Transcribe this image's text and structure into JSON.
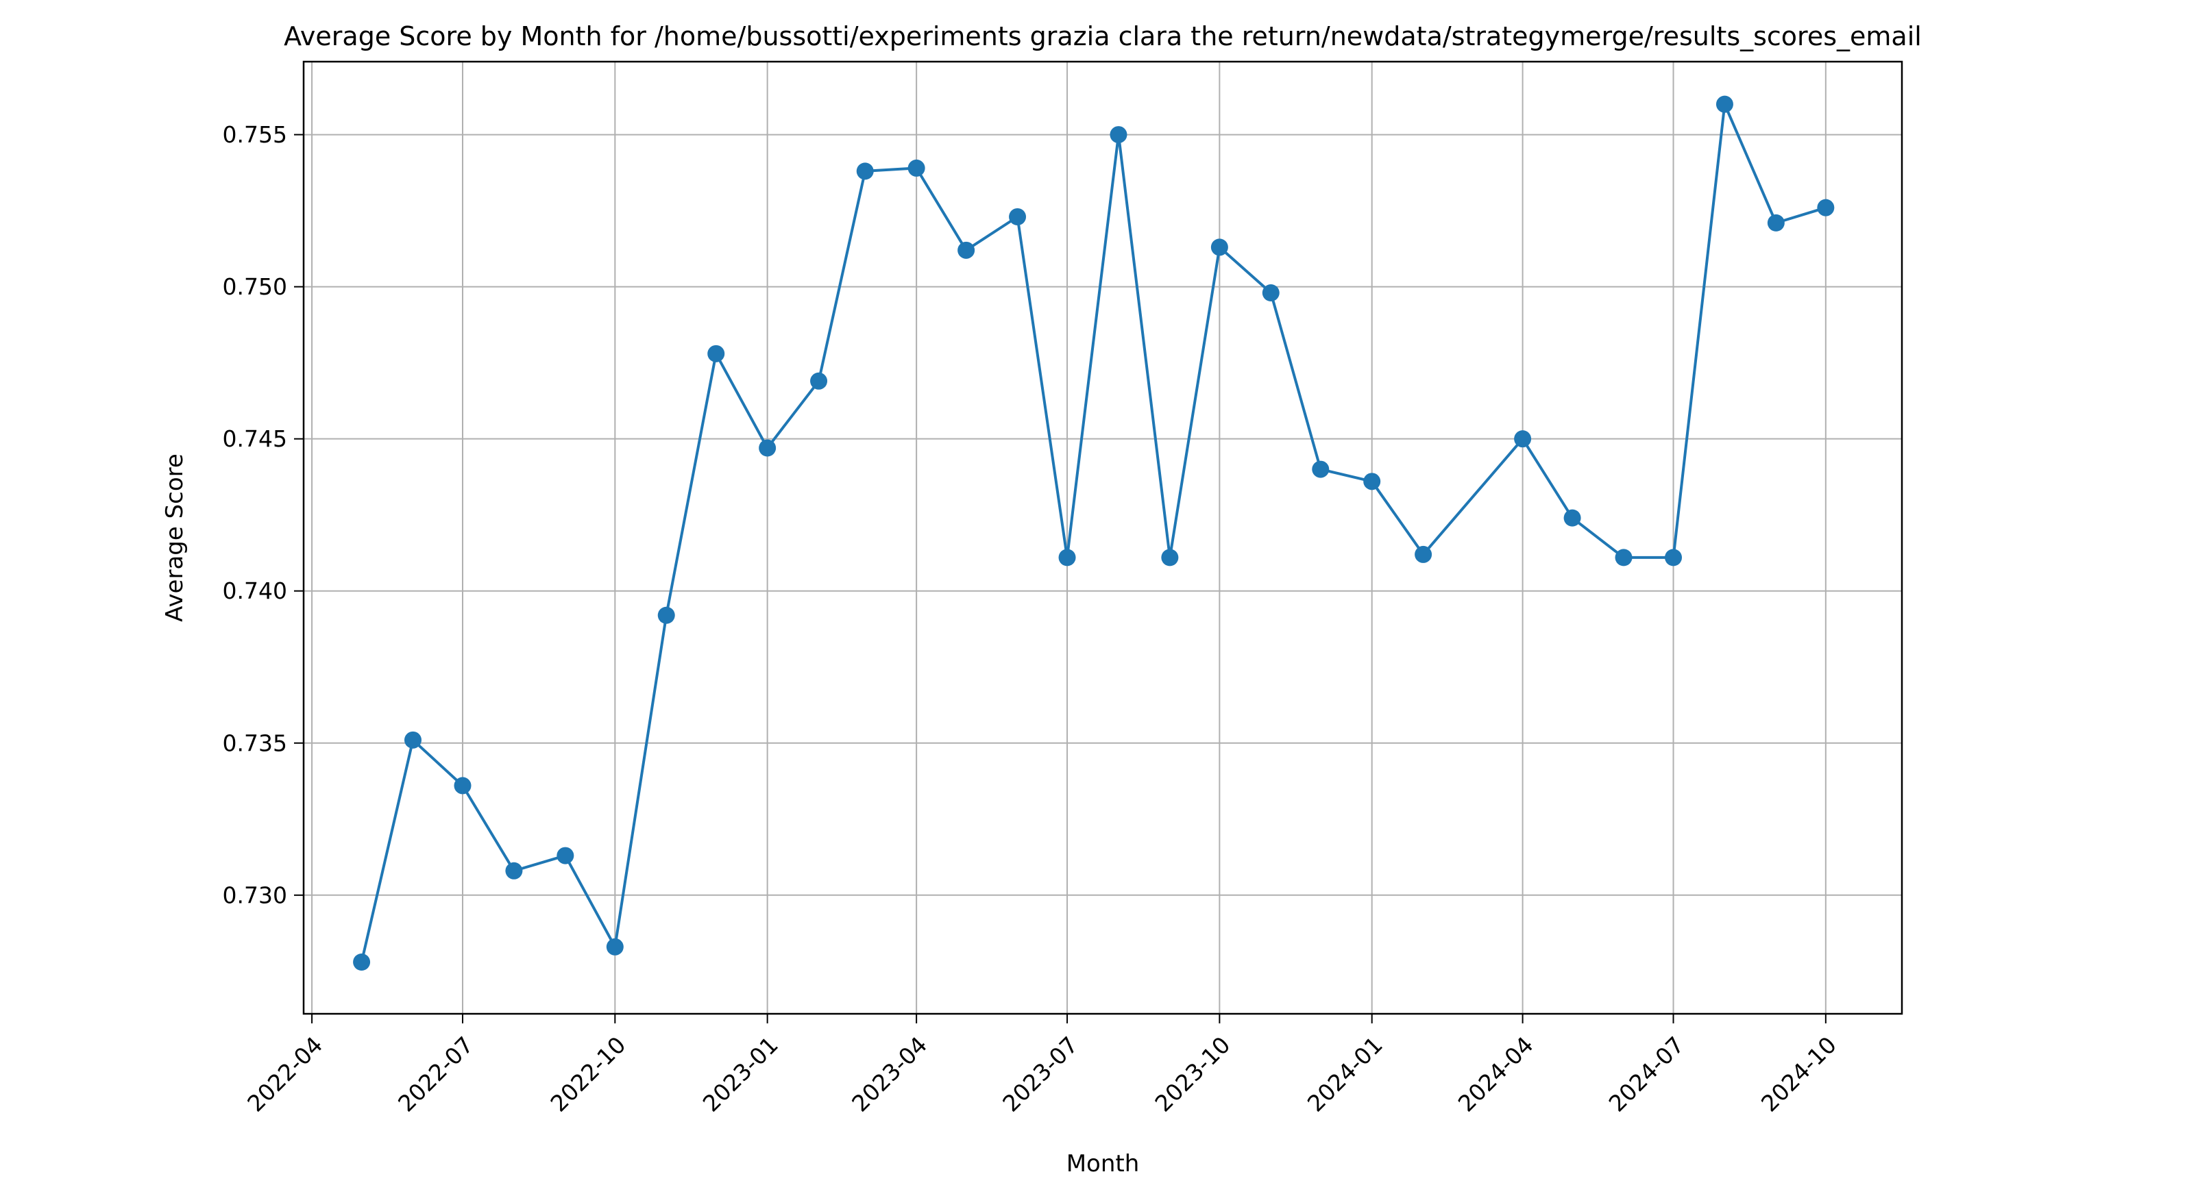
{
  "chart_data": {
    "type": "line",
    "title": "Average Score by Month for /home/bussotti/experiments grazia clara the return/newdata/strategymerge/results_scores_email",
    "xlabel": "Month",
    "ylabel": "Average Score",
    "xlim": [
      "2022-03-27",
      "2024-11-16"
    ],
    "ylim": [
      0.7261,
      0.7574
    ],
    "grid": true,
    "x_ticks": [
      "2022-04",
      "2022-07",
      "2022-10",
      "2023-01",
      "2023-04",
      "2023-07",
      "2023-10",
      "2024-01",
      "2024-04",
      "2024-07",
      "2024-10"
    ],
    "y_ticks": [
      "0.730",
      "0.735",
      "0.740",
      "0.745",
      "0.750",
      "0.755"
    ],
    "x": [
      "2022-05-01",
      "2022-06-01",
      "2022-07-01",
      "2022-08-01",
      "2022-09-01",
      "2022-10-01",
      "2022-11-01",
      "2022-12-01",
      "2023-01-01",
      "2023-02-01",
      "2023-03-01",
      "2023-04-01",
      "2023-05-01",
      "2023-06-01",
      "2023-07-01",
      "2023-08-01",
      "2023-09-01",
      "2023-10-01",
      "2023-11-01",
      "2023-12-01",
      "2024-01-01",
      "2024-02-01",
      "2024-04-01",
      "2024-05-01",
      "2024-06-01",
      "2024-07-01",
      "2024-08-01",
      "2024-09-01",
      "2024-10-01"
    ],
    "series": [
      {
        "color": "#1f77b4",
        "marker": "circle",
        "values": [
          0.7278,
          0.7351,
          0.7336,
          0.7308,
          0.7313,
          0.7283,
          0.7392,
          0.7478,
          0.7447,
          0.7469,
          0.7538,
          0.7539,
          0.7512,
          0.7523,
          0.7411,
          0.755,
          0.7411,
          0.7513,
          0.7498,
          0.744,
          0.7436,
          0.7412,
          0.745,
          0.7424,
          0.7411,
          0.7411,
          0.756,
          0.7521,
          0.7526
        ]
      }
    ]
  }
}
